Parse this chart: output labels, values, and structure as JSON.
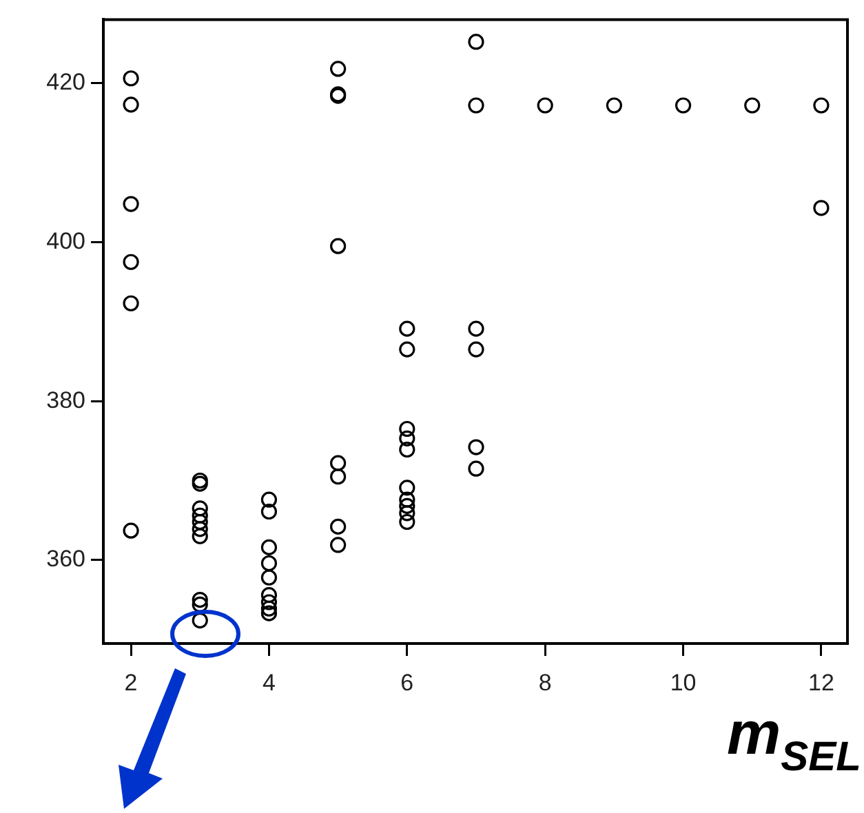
{
  "chart_data": {
    "type": "scatter",
    "xlabel": "m$_{SEL}$",
    "x": [
      2,
      2,
      2,
      2,
      2,
      2,
      3,
      3,
      3,
      3,
      3,
      3,
      3,
      3,
      3,
      3,
      4,
      4,
      4,
      4,
      4,
      4,
      4,
      4,
      4,
      5,
      5,
      5,
      5,
      5,
      5,
      5,
      5,
      6,
      6,
      6,
      6,
      6,
      6,
      6,
      6,
      6,
      6,
      7,
      7,
      7,
      7,
      7,
      7,
      8,
      9,
      10,
      11,
      12,
      12
    ],
    "values": [
      420.6,
      417.3,
      404.8,
      397.5,
      392.3,
      363.7,
      370,
      369.6,
      366.5,
      365.6,
      364.8,
      363.9,
      363,
      355,
      354.4,
      352.4,
      367.6,
      366.1,
      361.6,
      359.6,
      357.8,
      355.6,
      354.7,
      353.9,
      353.3,
      421.8,
      418.6,
      418.4,
      399.5,
      372.2,
      370.5,
      364.2,
      361.9,
      389.1,
      386.5,
      376.5,
      375.3,
      373.9,
      369.1,
      367.6,
      366.8,
      365.9,
      364.8,
      425.2,
      417.2,
      389.1,
      386.5,
      374.2,
      371.5,
      417.2,
      417.2,
      417.2,
      417.2,
      417.2,
      404.3
    ],
    "color": "#000000",
    "marker": "circle",
    "grid": false,
    "legend": false,
    "xlim": [
      1.6,
      12.38
    ],
    "ylim": [
      349.5,
      428
    ],
    "xticks": [
      2,
      4,
      6,
      8,
      10,
      12
    ],
    "yticks": [
      360,
      380,
      400,
      420
    ]
  }
}
